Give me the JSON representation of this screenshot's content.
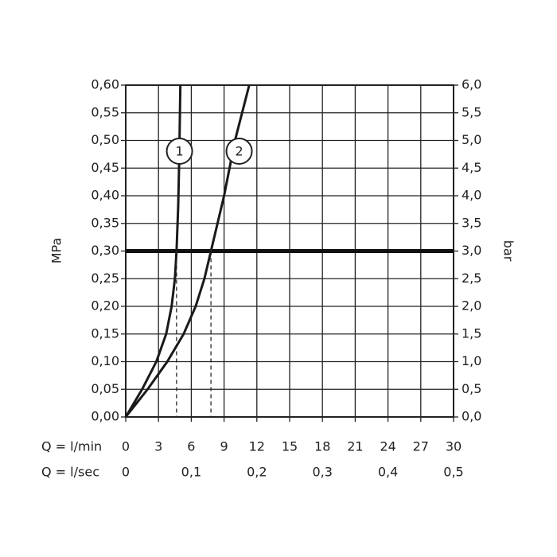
{
  "chart_data": {
    "type": "line",
    "y_label": "MPa",
    "y2_label": "bar",
    "x_label": "Q = l/min",
    "x2_label": "Q = l/sec",
    "xlim": [
      0,
      30
    ],
    "xticks": [
      0,
      3,
      6,
      9,
      12,
      15,
      18,
      21,
      24,
      27,
      30
    ],
    "x2lim": [
      0,
      0.5
    ],
    "x2ticks": [
      0,
      {
        "value": 0.1,
        "label": "0,1"
      },
      {
        "value": 0.2,
        "label": "0,2"
      },
      {
        "value": 0.3,
        "label": "0,3"
      },
      {
        "value": 0.4,
        "label": "0,4"
      },
      {
        "value": 0.5,
        "label": "0,5"
      }
    ],
    "ylim": [
      0,
      0.6
    ],
    "yticks": [
      {
        "value": 0,
        "label": "0,00"
      },
      {
        "value": 0.05,
        "label": "0,05"
      },
      {
        "value": 0.1,
        "label": "0,10"
      },
      {
        "value": 0.15,
        "label": "0,15"
      },
      {
        "value": 0.2,
        "label": "0,20"
      },
      {
        "value": 0.25,
        "label": "0,25"
      },
      {
        "value": 0.3,
        "label": "0,30"
      },
      {
        "value": 0.35,
        "label": "0,35"
      },
      {
        "value": 0.4,
        "label": "0,40"
      },
      {
        "value": 0.45,
        "label": "0,45"
      },
      {
        "value": 0.5,
        "label": "0,50"
      },
      {
        "value": 0.55,
        "label": "0,55"
      },
      {
        "value": 0.6,
        "label": "0,60"
      }
    ],
    "y2lim": [
      0,
      6
    ],
    "y2ticks": [
      {
        "value": 0,
        "label": "0,0"
      },
      {
        "value": 0.5,
        "label": "0,5"
      },
      {
        "value": 1,
        "label": "1,0"
      },
      {
        "value": 1.5,
        "label": "1,5"
      },
      {
        "value": 2,
        "label": "2,0"
      },
      {
        "value": 2.5,
        "label": "2,5"
      },
      {
        "value": 3,
        "label": "3,0"
      },
      {
        "value": 3.5,
        "label": "3,5"
      },
      {
        "value": 4,
        "label": "4,0"
      },
      {
        "value": 4.5,
        "label": "4,5"
      },
      {
        "value": 5,
        "label": "5,0"
      },
      {
        "value": 5.5,
        "label": "5,5"
      },
      {
        "value": 6,
        "label": "6,0"
      }
    ],
    "grid": true,
    "reference_line": 0.3,
    "series": [
      {
        "name": "1",
        "color": "#1a1a1a",
        "x": [
          0,
          1.5,
          2.8,
          3.7,
          4.2,
          4.5,
          4.65,
          4.8,
          4.9,
          5
        ],
        "values": [
          0,
          0.05,
          0.1,
          0.15,
          0.2,
          0.25,
          0.3,
          0.38,
          0.47,
          0.6
        ]
      },
      {
        "name": "2",
        "color": "#1a1a1a",
        "x": [
          0,
          2,
          3.8,
          5.3,
          6.4,
          7.2,
          7.8,
          9,
          10,
          11.3
        ],
        "values": [
          0,
          0.05,
          0.1,
          0.15,
          0.2,
          0.25,
          0.3,
          0.4,
          0.5,
          0.6
        ]
      }
    ]
  }
}
